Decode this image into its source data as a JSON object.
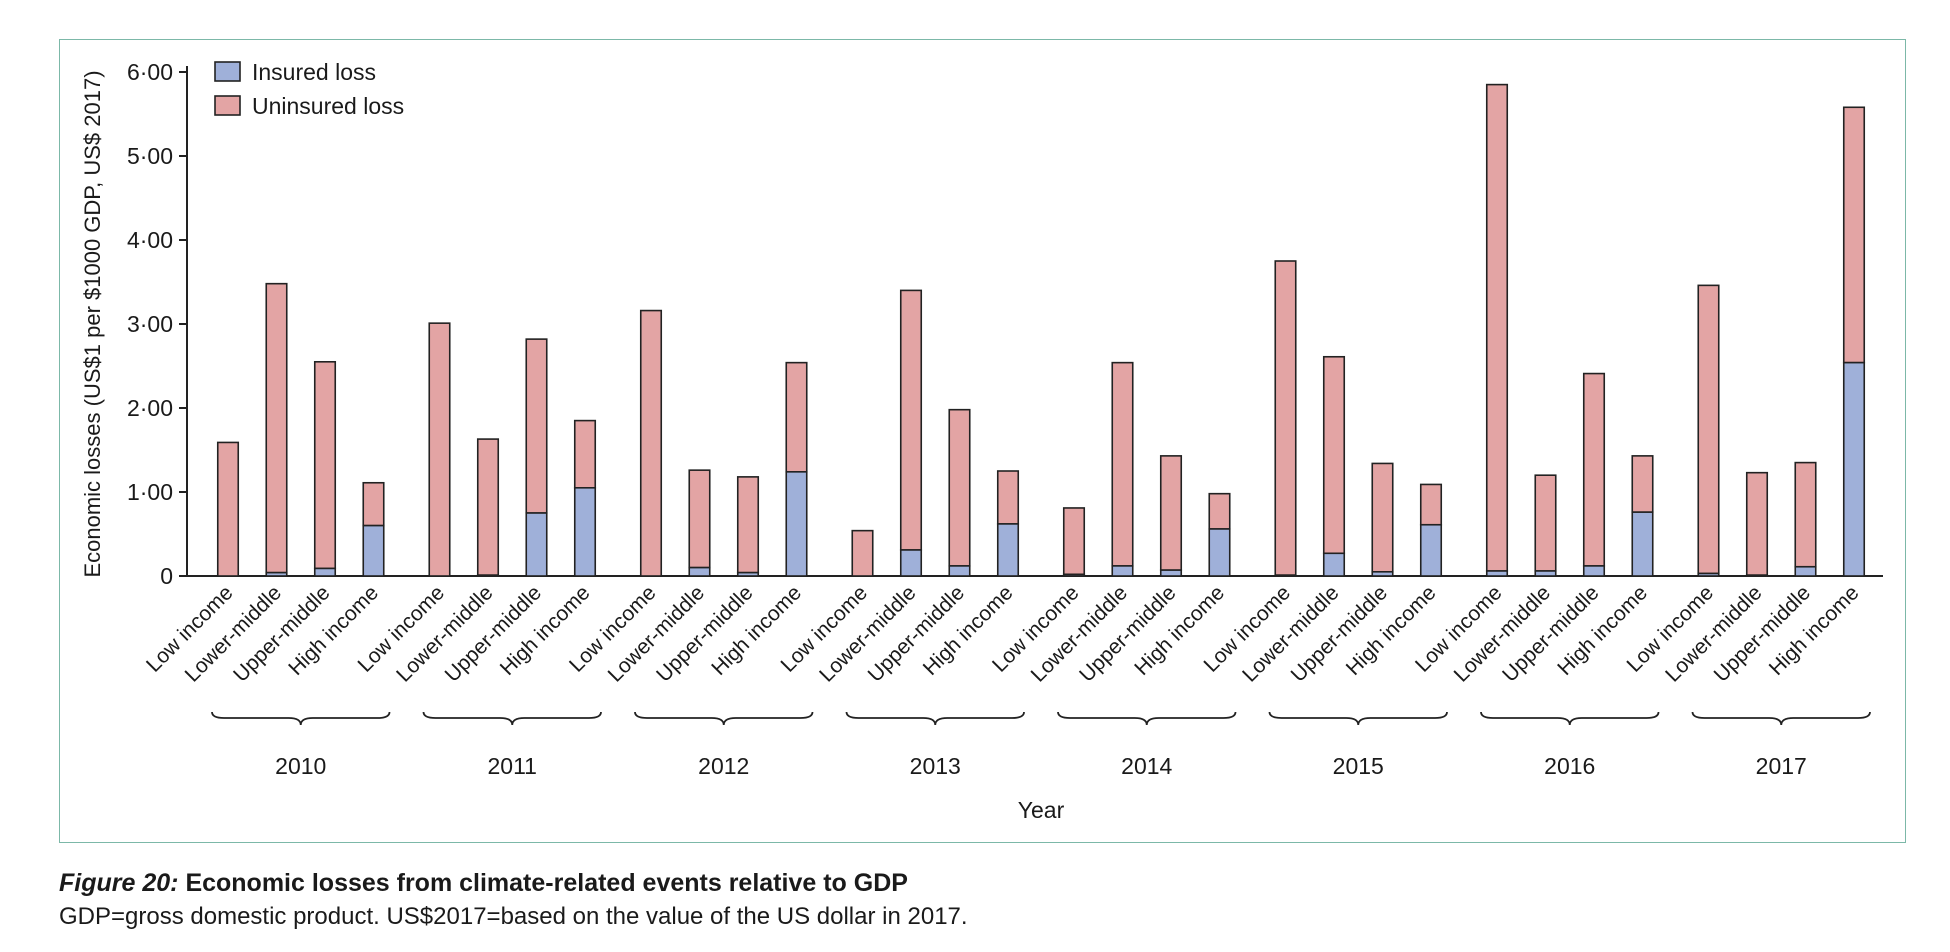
{
  "caption": {
    "label": "Figure 20:",
    "title": "Economic losses from climate-related events relative to GDP",
    "note": "GDP=gross domestic product. US$2017=based on the value of the US dollar in 2017."
  },
  "colors": {
    "insured": "#9fb0d9",
    "uninsured": "#e3a4a4",
    "frame": "#7cb8a8",
    "axis": "#222222"
  },
  "chart_data": {
    "type": "bar",
    "stacked": true,
    "title": "",
    "xlabel": "Year",
    "ylabel": "Economic losses (US$1 per $1000 GDP, US$ 2017)",
    "ylim": [
      0,
      6
    ],
    "yticks": [
      0,
      1,
      2,
      3,
      4,
      5,
      6
    ],
    "ytick_labels": [
      "0",
      "1·00",
      "2·00",
      "3·00",
      "4·00",
      "5·00",
      "6·00"
    ],
    "legend": {
      "position": "top-left",
      "entries": [
        "Insured loss",
        "Uninsured loss"
      ]
    },
    "groups": [
      "2010",
      "2011",
      "2012",
      "2013",
      "2014",
      "2015",
      "2016",
      "2017"
    ],
    "subcategories": [
      "Low income",
      "Lower-middle",
      "Upper-middle",
      "High income"
    ],
    "series": [
      {
        "name": "Insured loss",
        "values": [
          [
            0.0,
            0.04,
            0.09,
            0.6
          ],
          [
            0.0,
            0.01,
            0.75,
            1.05
          ],
          [
            0.0,
            0.1,
            0.04,
            1.24
          ],
          [
            0.0,
            0.31,
            0.12,
            0.62
          ],
          [
            0.02,
            0.12,
            0.07,
            0.56
          ],
          [
            0.01,
            0.27,
            0.05,
            0.61
          ],
          [
            0.06,
            0.06,
            0.12,
            0.76
          ],
          [
            0.03,
            0.01,
            0.11,
            2.54
          ]
        ]
      },
      {
        "name": "Uninsured loss",
        "values": [
          [
            1.59,
            3.44,
            2.46,
            0.51
          ],
          [
            3.01,
            1.62,
            2.07,
            0.8
          ],
          [
            3.16,
            1.16,
            1.14,
            1.3
          ],
          [
            0.54,
            3.09,
            1.86,
            0.63
          ],
          [
            0.79,
            2.42,
            1.36,
            0.42
          ],
          [
            3.74,
            2.34,
            1.29,
            0.48
          ],
          [
            5.79,
            1.14,
            2.29,
            0.67
          ],
          [
            3.43,
            1.22,
            1.24,
            3.04
          ]
        ]
      }
    ]
  }
}
